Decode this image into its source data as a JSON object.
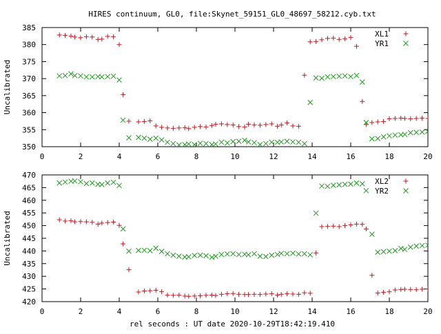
{
  "page": {
    "title": "HIRES continuum, GL0, file:Skynet_59151_GL0_48697_58212.cyb.txt",
    "xlabel": "rel seconds : UT date 2020-10-29T18:42:19.410"
  },
  "chart_data": [
    {
      "type": "scatter",
      "ylabel": "Uncalibrated",
      "xlim": [
        0,
        20
      ],
      "ylim": [
        350,
        385
      ],
      "xticks": [
        0,
        2,
        4,
        6,
        8,
        10,
        12,
        14,
        16,
        18,
        20
      ],
      "yticks": [
        350,
        355,
        360,
        365,
        370,
        375,
        380,
        385
      ],
      "legend": "top-right",
      "series": [
        {
          "name": "XL1",
          "marker": "plus",
          "color": "#c8141e",
          "x": [
            0.9,
            1.2,
            1.5,
            1.7,
            2.0,
            2.3,
            2.6,
            2.9,
            3.1,
            3.4,
            3.7,
            4.0,
            4.2,
            4.5,
            5.0,
            5.3,
            5.6,
            5.9,
            6.2,
            6.5,
            6.8,
            7.1,
            7.4,
            7.6,
            7.9,
            8.2,
            8.5,
            8.8,
            9.0,
            9.3,
            9.6,
            9.9,
            10.2,
            10.5,
            10.7,
            11.0,
            11.3,
            11.6,
            11.9,
            12.2,
            12.4,
            12.7,
            13.0,
            13.3,
            13.6,
            13.9,
            14.2,
            14.5,
            14.8,
            15.1,
            15.4,
            15.7,
            16.0,
            16.3,
            16.6,
            16.8,
            17.1,
            17.4,
            17.7,
            18.0,
            18.3,
            18.6,
            18.8,
            19.1,
            19.4,
            19.7,
            20.0
          ],
          "y": [
            382.8,
            382.7,
            382.5,
            382.2,
            382.0,
            382.3,
            382.2,
            381.5,
            381.6,
            382.4,
            382.3,
            380.0,
            365.3,
            357.5,
            357.3,
            357.4,
            357.6,
            356.1,
            355.7,
            355.5,
            355.4,
            355.5,
            355.6,
            355.3,
            355.7,
            355.9,
            355.8,
            356.2,
            356.6,
            356.7,
            356.5,
            356.4,
            355.9,
            355.8,
            356.6,
            356.4,
            356.3,
            356.5,
            356.7,
            356.0,
            356.4,
            357.0,
            356.1,
            356.0,
            371.0,
            380.8,
            380.9,
            381.4,
            381.8,
            381.9,
            381.5,
            381.7,
            382.1,
            379.5,
            363.3,
            356.5,
            357.1,
            357.3,
            357.4,
            358.2,
            358.3,
            358.4,
            358.3,
            358.2,
            358.3,
            358.4,
            358.3
          ]
        },
        {
          "name": "YR1",
          "marker": "cross",
          "color": "#1e9a1e",
          "x": [
            0.9,
            1.2,
            1.5,
            1.7,
            2.0,
            2.3,
            2.6,
            2.9,
            3.1,
            3.4,
            3.7,
            4.0,
            4.2,
            4.5,
            5.0,
            5.3,
            5.6,
            5.9,
            6.2,
            6.5,
            6.8,
            7.1,
            7.4,
            7.6,
            7.9,
            8.2,
            8.5,
            8.8,
            9.0,
            9.3,
            9.6,
            9.9,
            10.2,
            10.5,
            10.7,
            11.0,
            11.3,
            11.6,
            11.9,
            12.2,
            12.4,
            12.7,
            13.0,
            13.3,
            13.6,
            13.9,
            14.2,
            14.5,
            14.8,
            15.1,
            15.4,
            15.7,
            16.0,
            16.3,
            16.6,
            16.8,
            17.1,
            17.4,
            17.7,
            18.0,
            18.3,
            18.6,
            18.8,
            19.1,
            19.4,
            19.7,
            20.0
          ],
          "y": [
            370.8,
            370.9,
            371.4,
            370.9,
            370.8,
            370.5,
            370.5,
            370.6,
            370.5,
            370.6,
            370.7,
            369.6,
            357.8,
            352.6,
            352.7,
            352.5,
            352.2,
            352.5,
            352.0,
            351.3,
            350.9,
            350.5,
            350.6,
            350.8,
            350.6,
            351.0,
            350.9,
            350.6,
            350.8,
            351.3,
            351.1,
            351.5,
            351.6,
            351.9,
            351.4,
            351.2,
            350.6,
            350.9,
            351.3,
            351.3,
            351.4,
            351.6,
            351.4,
            351.3,
            350.9,
            363.0,
            370.2,
            370.1,
            370.5,
            370.6,
            370.7,
            370.8,
            370.6,
            370.9,
            369.0,
            357.1,
            352.3,
            352.4,
            352.9,
            353.2,
            353.4,
            353.5,
            353.6,
            354.1,
            354.2,
            354.3,
            354.5
          ]
        }
      ]
    },
    {
      "type": "scatter",
      "ylabel": "Uncalibrated",
      "xlim": [
        0,
        20
      ],
      "ylim": [
        420,
        470
      ],
      "xticks": [
        0,
        2,
        4,
        6,
        8,
        10,
        12,
        14,
        16,
        18,
        20
      ],
      "yticks": [
        420,
        425,
        430,
        435,
        440,
        445,
        450,
        455,
        460,
        465,
        470
      ],
      "legend": "top-right",
      "series": [
        {
          "name": "XL2",
          "marker": "plus",
          "color": "#c8141e",
          "x": [
            0.9,
            1.2,
            1.5,
            1.7,
            2.0,
            2.3,
            2.6,
            2.9,
            3.1,
            3.4,
            3.7,
            4.0,
            4.2,
            4.5,
            5.0,
            5.3,
            5.6,
            5.9,
            6.2,
            6.5,
            6.8,
            7.1,
            7.4,
            7.6,
            7.9,
            8.2,
            8.5,
            8.8,
            9.0,
            9.3,
            9.6,
            9.9,
            10.2,
            10.5,
            10.7,
            11.0,
            11.3,
            11.6,
            11.9,
            12.2,
            12.4,
            12.7,
            13.0,
            13.3,
            13.6,
            13.9,
            14.2,
            14.5,
            14.8,
            15.1,
            15.4,
            15.7,
            16.0,
            16.3,
            16.6,
            16.8,
            17.1,
            17.4,
            17.7,
            18.0,
            18.3,
            18.6,
            18.8,
            19.1,
            19.4,
            19.7,
            20.0
          ],
          "y": [
            452.3,
            451.8,
            451.9,
            451.5,
            451.6,
            451.5,
            451.3,
            450.6,
            451.0,
            451.2,
            451.4,
            450.1,
            442.8,
            432.6,
            423.8,
            424.2,
            424.3,
            424.5,
            423.9,
            422.6,
            422.5,
            422.6,
            422.2,
            422.1,
            422.2,
            422.3,
            422.5,
            422.6,
            422.4,
            422.9,
            423.1,
            423.2,
            422.9,
            422.8,
            422.8,
            422.9,
            422.8,
            423.0,
            423.1,
            422.6,
            422.9,
            423.1,
            423.0,
            422.9,
            423.5,
            423.3,
            439.2,
            449.6,
            449.7,
            449.8,
            449.6,
            450.0,
            450.3,
            450.6,
            450.5,
            448.7,
            430.4,
            423.4,
            423.7,
            423.9,
            424.6,
            424.8,
            424.9,
            424.8,
            424.7,
            424.9,
            425.0
          ]
        },
        {
          "name": "YR2",
          "marker": "cross",
          "color": "#1e9a1e",
          "x": [
            0.9,
            1.2,
            1.5,
            1.7,
            2.0,
            2.3,
            2.6,
            2.9,
            3.1,
            3.4,
            3.7,
            4.0,
            4.2,
            4.5,
            5.0,
            5.3,
            5.6,
            5.9,
            6.2,
            6.5,
            6.8,
            7.1,
            7.4,
            7.6,
            7.9,
            8.2,
            8.5,
            8.8,
            9.0,
            9.3,
            9.6,
            9.9,
            10.2,
            10.5,
            10.7,
            11.0,
            11.3,
            11.6,
            11.9,
            12.2,
            12.4,
            12.7,
            13.0,
            13.3,
            13.6,
            13.9,
            14.2,
            14.5,
            14.8,
            15.1,
            15.4,
            15.7,
            16.0,
            16.3,
            16.6,
            16.8,
            17.1,
            17.4,
            17.7,
            18.0,
            18.3,
            18.6,
            18.8,
            19.1,
            19.4,
            19.7,
            20.0
          ],
          "y": [
            466.8,
            467.2,
            467.5,
            467.6,
            467.3,
            466.6,
            466.8,
            466.3,
            466.2,
            466.8,
            467.1,
            465.8,
            448.7,
            439.9,
            440.2,
            440.3,
            440.1,
            441.1,
            439.8,
            438.9,
            438.3,
            437.9,
            437.6,
            437.7,
            438.2,
            438.3,
            438.1,
            437.5,
            437.9,
            438.6,
            438.8,
            438.9,
            438.6,
            438.7,
            438.5,
            438.9,
            437.9,
            437.8,
            438.3,
            438.6,
            439.0,
            438.9,
            439.1,
            438.8,
            438.9,
            438.5,
            454.9,
            465.6,
            465.5,
            465.9,
            466.1,
            466.3,
            466.4,
            466.8,
            466.5,
            463.8,
            446.6,
            439.5,
            439.7,
            439.9,
            440.1,
            441.0,
            440.6,
            441.5,
            441.9,
            442.1,
            442.3
          ]
        }
      ]
    }
  ]
}
